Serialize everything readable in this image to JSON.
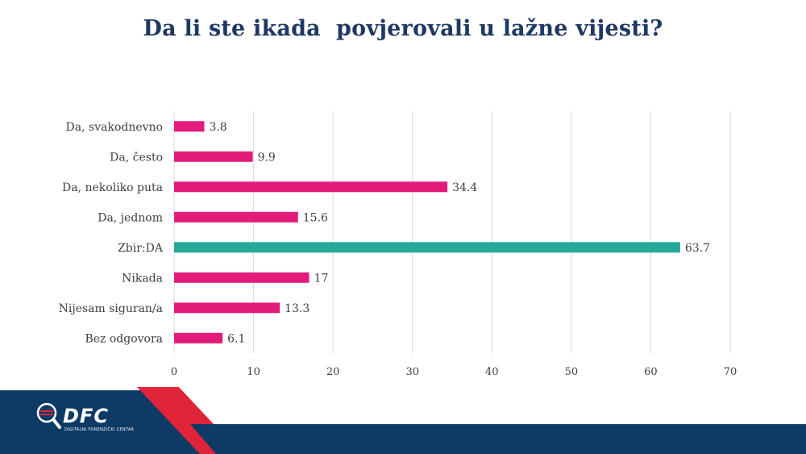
{
  "title": "Da li ste ikada  povjerovali u lažne vijesti?",
  "logo": {
    "name": "DFC",
    "subtitle": "DIGITALNI FORENZIČKI CENTAR"
  },
  "colors": {
    "bar": "#e31b7a",
    "highlight": "#26a89a",
    "title": "#1f3864",
    "navy": "#0e3a66",
    "red": "#e0243a"
  },
  "chart_data": {
    "type": "bar",
    "orientation": "horizontal",
    "title": "Da li ste ikada  povjerovali u lažne vijesti?",
    "categories": [
      "Da, svakodnevno",
      "Da, često",
      "Da, nekoliko puta",
      "Da, jednom",
      "Zbir:DA",
      "Nikada",
      "Nijesam siguran/a",
      "Bez odgovora"
    ],
    "values": [
      3.8,
      9.9,
      34.4,
      15.6,
      63.7,
      17,
      13.3,
      6.1
    ],
    "value_labels": [
      "3.8",
      "9.9",
      "34.4",
      "15.6",
      "63.7",
      "17",
      "13.3",
      "6.1"
    ],
    "highlight": "Zbir:DA",
    "xlim": [
      0,
      70
    ],
    "xticks": [
      "0",
      "10",
      "20",
      "30",
      "40",
      "50",
      "60",
      "70"
    ],
    "grid": true,
    "xlabel": "",
    "ylabel": ""
  }
}
